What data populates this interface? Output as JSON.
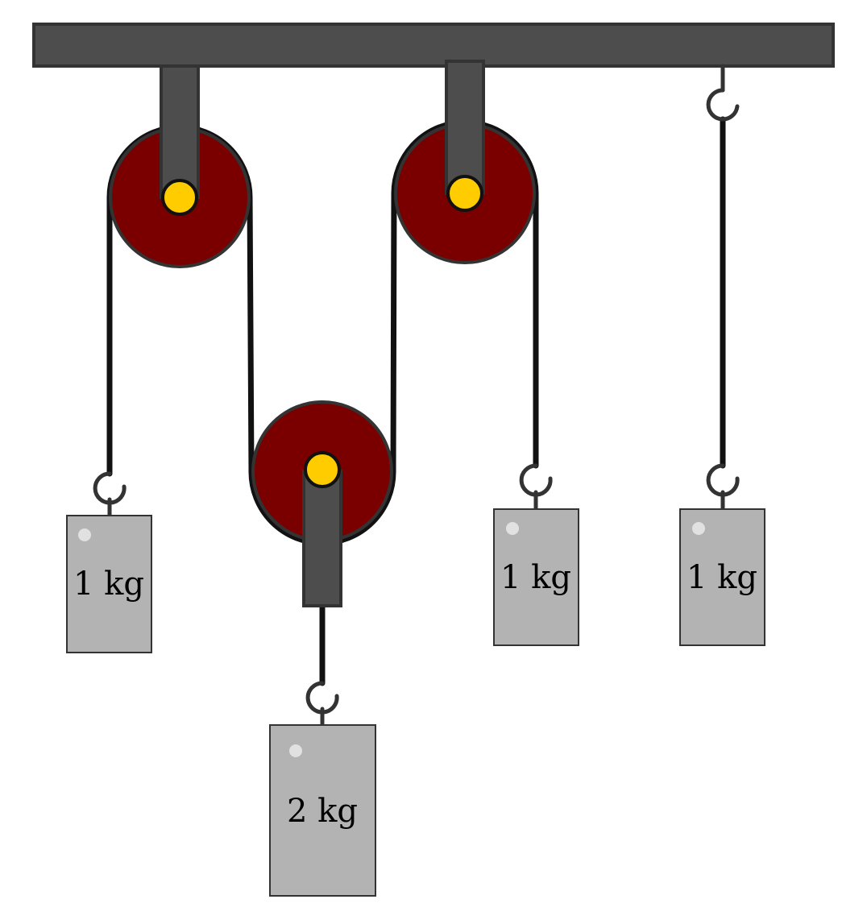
{
  "colors": {
    "ceiling": "#4d4d4d",
    "outline": "#333333",
    "pulley_wheel": "#7a0000",
    "axle": "#ffcc00",
    "rope": "#111111",
    "mass_block": "#b3b3b3",
    "background": "#ffffff"
  },
  "pulleys": [
    {
      "role": "fixed"
    },
    {
      "role": "fixed"
    },
    {
      "role": "movable"
    }
  ],
  "masses": [
    {
      "label": "1 kg"
    },
    {
      "label": "2 kg"
    },
    {
      "label": "1 kg"
    },
    {
      "label": "1 kg"
    }
  ],
  "icons": [
    "hook-icon",
    "pulley-icon",
    "axle-icon"
  ]
}
